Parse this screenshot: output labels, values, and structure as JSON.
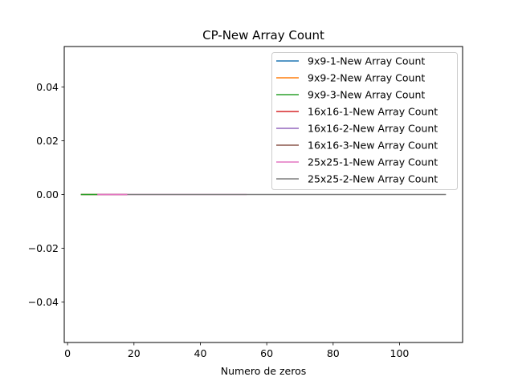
{
  "chart_data": {
    "type": "line",
    "title": "CP-New Array Count",
    "xlabel": "Numero de zeros",
    "ylabel": "",
    "xlim": [
      -1,
      119
    ],
    "ylim": [
      -0.055,
      0.055
    ],
    "xticks": [
      0,
      20,
      40,
      60,
      80,
      100
    ],
    "xtick_labels": [
      "0",
      "20",
      "40",
      "60",
      "80",
      "100"
    ],
    "yticks": [
      -0.04,
      -0.02,
      0.0,
      0.02,
      0.04
    ],
    "ytick_labels": [
      "−0.04",
      "−0.02",
      "0.00",
      "0.02",
      "0.04"
    ],
    "grid": false,
    "legend_position": "top-right",
    "series": [
      {
        "name": "9x9-1-New Array Count",
        "color": "#1f77b4",
        "x": [
          4,
          9
        ],
        "y": [
          0,
          0
        ]
      },
      {
        "name": "9x9-2-New Array Count",
        "color": "#ff7f0e",
        "x": [
          4,
          9
        ],
        "y": [
          0,
          0
        ]
      },
      {
        "name": "9x9-3-New Array Count",
        "color": "#2ca02c",
        "x": [
          4,
          9
        ],
        "y": [
          0,
          0
        ]
      },
      {
        "name": "16x16-1-New Array Count",
        "color": "#d62728",
        "x": [
          9,
          18
        ],
        "y": [
          0,
          0
        ]
      },
      {
        "name": "16x16-2-New Array Count",
        "color": "#9467bd",
        "x": [
          9,
          18
        ],
        "y": [
          0,
          0
        ]
      },
      {
        "name": "16x16-3-New Array Count",
        "color": "#8c564b",
        "x": [
          9,
          18
        ],
        "y": [
          0,
          0
        ]
      },
      {
        "name": "25x25-1-New Array Count",
        "color": "#e377c2",
        "x": [
          9,
          54
        ],
        "y": [
          0,
          0
        ]
      },
      {
        "name": "25x25-2-New Array Count",
        "color": "#7f7f7f",
        "x": [
          18,
          114
        ],
        "y": [
          0,
          0
        ]
      }
    ]
  }
}
